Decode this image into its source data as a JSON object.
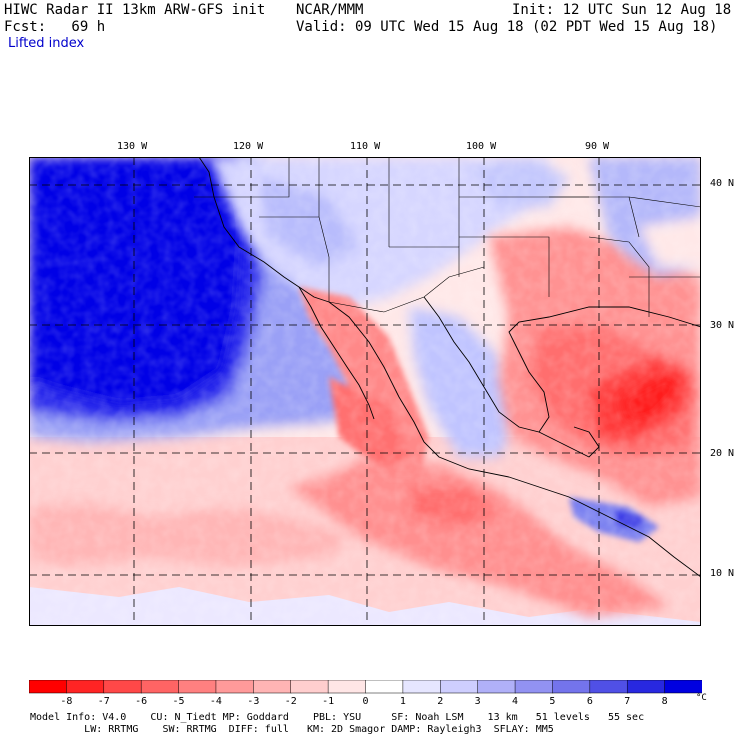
{
  "header": {
    "line1_left": "HIWC Radar II 13km ARW-GFS init",
    "line1_mid": "NCAR/MMM",
    "line1_right": "Init: 12 UTC Sun 12 Aug 18",
    "line2_left": "Fcst:   69 h",
    "line2_right": "Valid: 09 UTC Wed 15 Aug 18 (02 PDT Wed 15 Aug 18)",
    "field": "Lifted index"
  },
  "map": {
    "longitude_labels": [
      "130 W",
      "120 W",
      "110 W",
      "100 W",
      "90 W"
    ],
    "latitude_labels": [
      "40 N",
      "30 N",
      "20 N",
      "10 N"
    ]
  },
  "colorbar": {
    "labels": [
      "-8",
      "-7",
      "-6",
      "-5",
      "-4",
      "-3",
      "-2",
      "-1",
      "0",
      "1",
      "2",
      "3",
      "4",
      "5",
      "6",
      "7",
      "8"
    ],
    "unit": "°C",
    "colors": [
      "#ff0000",
      "#ff2424",
      "#ff4848",
      "#ff6464",
      "#ff8080",
      "#ff9a9a",
      "#ffb4b4",
      "#ffcece",
      "#ffe6e6",
      "#ffffff",
      "#e6e6ff",
      "#cecefe",
      "#b0b0f8",
      "#9292f2",
      "#7474ec",
      "#5050e6",
      "#2828e0",
      "#0000e0"
    ]
  },
  "footer": {
    "line1": "Model Info: V4.0    CU: N_Tiedt MP: Goddard    PBL: YSU     SF: Noah LSM    13 km   51 levels   55 sec",
    "line2": "         LW: RRTMG    SW: RRTMG  DIFF: full   KM: 2D Smagor DAMP: Rayleigh3  SFLAY: MM5"
  }
}
